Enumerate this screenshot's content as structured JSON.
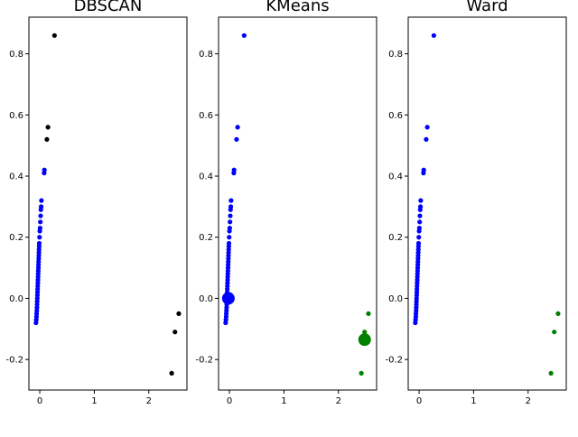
{
  "chart_data": [
    {
      "type": "scatter",
      "title": "DBSCAN",
      "xlim": [
        -0.2,
        2.7
      ],
      "ylim": [
        -0.3,
        0.92
      ],
      "xticks": [
        "0",
        "1",
        "2"
      ],
      "yticks": [
        "-0.2",
        "0.0",
        "0.2",
        "0.4",
        "0.6",
        "0.8"
      ],
      "series": [
        {
          "color": "#0000ff",
          "points": "core"
        },
        {
          "color": "#000000",
          "points": [
            [
              0.27,
              0.86
            ],
            [
              0.15,
              0.56
            ],
            [
              0.13,
              0.52
            ],
            [
              2.55,
              -0.05
            ],
            [
              2.48,
              -0.11
            ],
            [
              2.42,
              -0.245
            ]
          ]
        }
      ]
    },
    {
      "type": "scatter",
      "title": "KMeans",
      "xlim": [
        -0.2,
        2.7
      ],
      "ylim": [
        -0.3,
        0.92
      ],
      "xticks": [
        "0",
        "1",
        "2"
      ],
      "yticks": [
        "-0.2",
        "0.0",
        "0.2",
        "0.4",
        "0.6",
        "0.8"
      ],
      "series": [
        {
          "color": "#0000ff",
          "points": "core_plus_outliers"
        },
        {
          "color": "#008000",
          "points": [
            [
              2.55,
              -0.05
            ],
            [
              2.48,
              -0.11
            ],
            [
              2.42,
              -0.245
            ]
          ]
        }
      ],
      "centers": [
        {
          "color": "#0000ff",
          "x": -0.02,
          "y": 0.0
        },
        {
          "color": "#008000",
          "x": 2.48,
          "y": -0.135
        }
      ]
    },
    {
      "type": "scatter",
      "title": "Ward",
      "xlim": [
        -0.2,
        2.7
      ],
      "ylim": [
        -0.3,
        0.92
      ],
      "xticks": [
        "0",
        "1",
        "2"
      ],
      "yticks": [
        "-0.2",
        "0.0",
        "0.2",
        "0.4",
        "0.6",
        "0.8"
      ],
      "series": [
        {
          "color": "#0000ff",
          "points": "core_plus_outliers"
        },
        {
          "color": "#008000",
          "points": [
            [
              2.55,
              -0.05
            ],
            [
              2.48,
              -0.11
            ],
            [
              2.42,
              -0.245
            ]
          ]
        }
      ]
    }
  ],
  "shared": {
    "core": [
      [
        -0.07,
        -0.08
      ],
      [
        -0.065,
        -0.07
      ],
      [
        -0.06,
        -0.06
      ],
      [
        -0.058,
        -0.05
      ],
      [
        -0.055,
        -0.04
      ],
      [
        -0.052,
        -0.03
      ],
      [
        -0.05,
        -0.02
      ],
      [
        -0.048,
        -0.01
      ],
      [
        -0.046,
        0.0
      ],
      [
        -0.044,
        0.01
      ],
      [
        -0.042,
        0.02
      ],
      [
        -0.04,
        0.03
      ],
      [
        -0.038,
        0.04
      ],
      [
        -0.036,
        0.05
      ],
      [
        -0.034,
        0.06
      ],
      [
        -0.032,
        0.07
      ],
      [
        -0.03,
        0.08
      ],
      [
        -0.028,
        0.09
      ],
      [
        -0.026,
        0.1
      ],
      [
        -0.024,
        0.11
      ],
      [
        -0.022,
        0.12
      ],
      [
        -0.02,
        0.13
      ],
      [
        -0.018,
        0.14
      ],
      [
        -0.016,
        0.15
      ],
      [
        -0.014,
        0.16
      ],
      [
        -0.012,
        0.17
      ],
      [
        -0.01,
        0.18
      ],
      [
        -0.005,
        0.2
      ],
      [
        0.0,
        0.22
      ],
      [
        0.005,
        0.23
      ],
      [
        0.01,
        0.25
      ],
      [
        0.015,
        0.27
      ],
      [
        0.02,
        0.29
      ],
      [
        0.025,
        0.3
      ],
      [
        0.03,
        0.32
      ],
      [
        0.08,
        0.41
      ],
      [
        0.085,
        0.42
      ]
    ]
  }
}
